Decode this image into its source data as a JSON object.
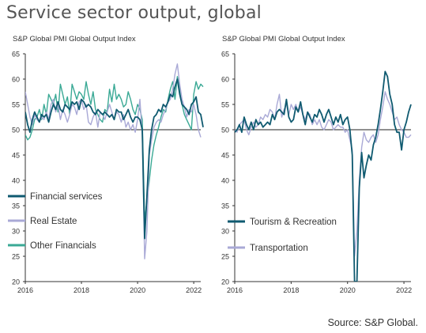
{
  "page": {
    "title": "Service sector output, global",
    "source": "Source: S&P Global."
  },
  "colors": {
    "financial_services": "#0f5a70",
    "real_estate": "#a9a9d6",
    "other_financials": "#3aa995",
    "tourism_recreation": "#0f5a70",
    "transportation": "#a9a9d6",
    "reference_line": "#222222",
    "axis": "#333333"
  },
  "chart_data": [
    {
      "type": "line",
      "title": "S&P Global PMI Global Output Index",
      "xlabel": "",
      "ylabel": "",
      "xlim": [
        2016,
        2022.25
      ],
      "ylim": [
        20,
        65
      ],
      "y_ticks": [
        20,
        25,
        30,
        35,
        40,
        45,
        50,
        55,
        60,
        65
      ],
      "x_ticks": [
        2016,
        2018,
        2020,
        2022
      ],
      "x_tick_labels": [
        "2016",
        "2018",
        "2020",
        "2022"
      ],
      "reference_line": 50,
      "grid": false,
      "legend_position": "lower-left",
      "series": [
        {
          "name": "Financial services",
          "color_key": "financial_services",
          "x_start": 2016,
          "step_months": 1,
          "values": [
            53.5,
            51,
            49.5,
            52,
            53.5,
            52.5,
            51.5,
            53,
            52.5,
            53,
            51.5,
            53.5,
            55,
            54,
            55.5,
            54,
            53.5,
            55,
            54.5,
            54,
            55.5,
            55,
            55.5,
            54,
            56,
            55.5,
            54.5,
            55,
            54.5,
            53.5,
            53,
            54,
            53.5,
            53,
            53.5,
            53,
            52.5,
            53,
            52,
            54,
            53.5,
            53.5,
            52,
            53,
            54,
            52.5,
            51.5,
            52.5,
            52.5,
            52,
            50,
            28.5,
            37,
            46,
            50,
            52.5,
            53,
            54,
            53.5,
            55,
            54.5,
            55.5,
            57,
            56.5,
            58.5,
            60,
            57,
            55,
            54.5,
            54,
            53,
            55,
            55.5,
            56.5,
            53.5,
            53,
            50.5
          ]
        },
        {
          "name": "Real Estate",
          "color_key": "real_estate",
          "x_start": 2016,
          "step_months": 1,
          "values": [
            57.5,
            55,
            52.5,
            51,
            53,
            52,
            51.5,
            52.5,
            52,
            53.5,
            52,
            55,
            56,
            53.5,
            55,
            52,
            54,
            53,
            51.5,
            53,
            55,
            54.5,
            53,
            55.5,
            56,
            54,
            55,
            51.5,
            51,
            52.5,
            53.5,
            50.5,
            53.5,
            53,
            52,
            53.5,
            55,
            53.5,
            52,
            53.5,
            53,
            51.5,
            53,
            50.5,
            51.5,
            50,
            51,
            49.5,
            52,
            56,
            49,
            24.5,
            30,
            45,
            48,
            50.5,
            51.5,
            52,
            51.5,
            53,
            54,
            55.5,
            56,
            58,
            61,
            63,
            59,
            56,
            54.5,
            52.5,
            54,
            53.5,
            55,
            53,
            50,
            48.5
          ]
        },
        {
          "name": "Other Financials",
          "color_key": "other_financials",
          "x_start": 2016,
          "step_months": 1,
          "values": [
            49,
            48,
            48.5,
            50,
            52,
            52.5,
            54,
            52,
            55,
            53,
            57,
            56,
            55,
            57,
            53.5,
            59,
            57,
            55,
            56.5,
            53,
            59,
            57.5,
            56,
            57.5,
            57,
            56,
            59.5,
            57,
            55,
            57.5,
            54,
            53,
            52,
            51.5,
            54,
            53.5,
            58,
            55.5,
            59,
            56,
            57,
            56,
            54.5,
            55,
            57.5,
            56,
            54,
            53,
            55,
            54,
            52,
            32,
            36,
            40,
            44,
            47,
            49,
            50.5,
            52.5,
            54,
            53.5,
            56,
            58,
            59.5,
            56,
            60.5,
            58,
            55,
            53,
            52,
            51,
            50,
            57,
            59.5,
            58,
            59,
            58.5
          ]
        }
      ]
    },
    {
      "type": "line",
      "title": "S&P Global PMI Global Output Index",
      "xlabel": "",
      "ylabel": "",
      "xlim": [
        2016,
        2022.25
      ],
      "ylim": [
        20,
        65
      ],
      "y_ticks": [
        20,
        25,
        30,
        35,
        40,
        45,
        50,
        55,
        60,
        65
      ],
      "x_ticks": [
        2016,
        2018,
        2020,
        2022
      ],
      "x_tick_labels": [
        "2016",
        "2018",
        "2020",
        "2022"
      ],
      "reference_line": 50,
      "grid": false,
      "legend_position": "lower-center",
      "series": [
        {
          "name": "Tourism & Recreation",
          "color_key": "tourism_recreation",
          "x_start": 2016,
          "step_months": 1,
          "values": [
            49.5,
            50,
            51,
            49.5,
            52.5,
            51,
            50,
            51.5,
            50,
            52,
            51,
            51.5,
            50.5,
            51,
            51.5,
            51,
            53,
            52,
            53.5,
            54,
            53.5,
            53,
            56,
            52.5,
            51.5,
            52,
            54.5,
            53.5,
            55.5,
            53,
            51,
            53.5,
            52.5,
            51.5,
            53,
            52.5,
            54,
            53,
            51.5,
            53,
            54,
            52.5,
            51,
            52.5,
            51.5,
            53,
            51,
            52,
            52.5,
            50,
            45,
            20,
            20,
            38.5,
            45.5,
            40.5,
            43,
            45,
            44,
            47,
            48.5,
            51,
            54,
            57.5,
            61.5,
            60.5,
            57,
            55,
            51,
            49.5,
            49.5,
            46,
            50,
            51.5,
            53.5,
            55
          ]
        },
        {
          "name": "Transportation",
          "color_key": "transportation",
          "x_start": 2016,
          "step_months": 1,
          "values": [
            50,
            49.5,
            51,
            51.5,
            52,
            50,
            49,
            50.5,
            51.5,
            50.5,
            51,
            52.5,
            52,
            53,
            52.5,
            54,
            53.5,
            52,
            55,
            57,
            52.5,
            54,
            55,
            53,
            55,
            54,
            55,
            53.5,
            54.5,
            53,
            52,
            53.5,
            53,
            51,
            52,
            51,
            52,
            50.5,
            50,
            51,
            52,
            51.5,
            50,
            50.5,
            51,
            50.5,
            50.5,
            49.5,
            50,
            48,
            46,
            25,
            30,
            40,
            46.5,
            49.5,
            48,
            47.5,
            48.5,
            49,
            47.5,
            49,
            52,
            54.5,
            57.5,
            56,
            55,
            53.5,
            52,
            52.5,
            51,
            50,
            49.5,
            48.5,
            48.5,
            49
          ]
        }
      ]
    }
  ],
  "legends": [
    {
      "items": [
        {
          "label": "Financial services",
          "color_key": "financial_services"
        },
        {
          "label": "Real Estate",
          "color_key": "real_estate"
        },
        {
          "label": "Other Financials",
          "color_key": "other_financials"
        }
      ]
    },
    {
      "items": [
        {
          "label": "Tourism & Recreation",
          "color_key": "tourism_recreation"
        },
        {
          "label": "Transportation",
          "color_key": "transportation"
        }
      ]
    }
  ]
}
